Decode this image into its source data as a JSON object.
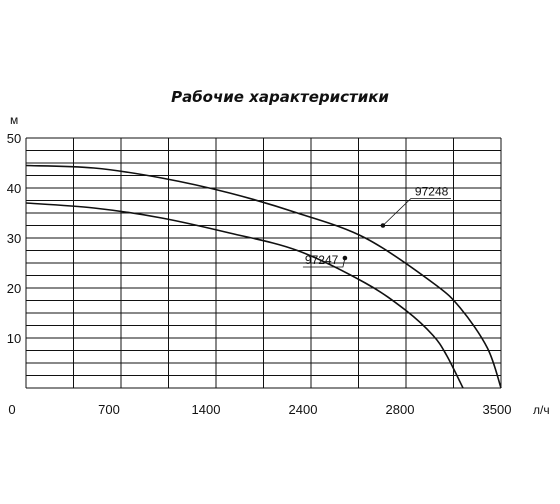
{
  "chart_data": {
    "type": "line",
    "title": "Рабочие характеристики",
    "xlabel": "л/ч",
    "ylabel": "м",
    "x_ticks": [
      "0",
      "700",
      "1400",
      "2400",
      "2800",
      "3500"
    ],
    "y_ticks": [
      "10",
      "20",
      "30",
      "40",
      "50"
    ],
    "xlim": [
      0,
      3500
    ],
    "ylim": [
      0,
      50
    ],
    "grid": true,
    "series": [
      {
        "name": "97248",
        "x": [
          0,
          500,
          1000,
          1500,
          2000,
          2500,
          3000,
          3200,
          3400,
          3500
        ],
        "y": [
          44.5,
          44,
          42,
          39,
          35,
          30,
          21,
          16,
          8,
          0
        ],
        "marker_point": [
          2630,
          32.5
        ]
      },
      {
        "name": "97247",
        "x": [
          0,
          500,
          1000,
          1500,
          2000,
          2500,
          2800,
          3000,
          3100,
          3220
        ],
        "y": [
          37,
          36,
          34,
          31,
          27.5,
          21,
          15.5,
          10.5,
          6.5,
          0
        ],
        "marker_point": [
          2350,
          26
        ]
      }
    ]
  }
}
